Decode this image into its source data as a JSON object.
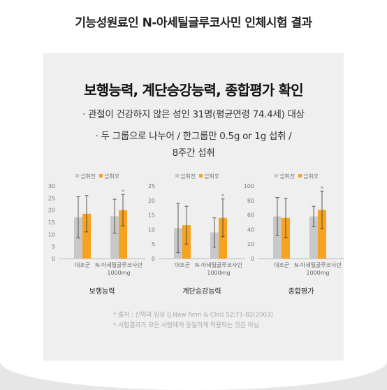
{
  "header": {
    "title": "기능성원료인 N-아세틸글루코사민 인체시험 결과"
  },
  "panel": {
    "heading": "보행능력, 계단승강능력, 종합평가 확인",
    "lines": [
      "· 관절이 건강하지 않은 성인 31명(평균연령 74.4세) 대상",
      "· 두 그룹으로 나누어 / 한그룹만 0.5g or 1g 섭취 /",
      "8주간 섭취"
    ]
  },
  "colors": {
    "before": "#c8c8c8",
    "after": "#f5a321"
  },
  "chart_data": [
    {
      "type": "bar",
      "title": "보행능력",
      "categories": [
        "대조군",
        "N-아세틸글루코사민"
      ],
      "category_sublabels": [
        "",
        "1000mg"
      ],
      "series": [
        {
          "name": "섭취전",
          "values": [
            17,
            17.5
          ],
          "error": [
            8.5,
            7
          ]
        },
        {
          "name": "섭취후",
          "values": [
            18.5,
            20
          ],
          "error": [
            7.5,
            6.5
          ]
        }
      ],
      "significance": [
        "",
        "*"
      ],
      "ylim": [
        0,
        30
      ],
      "yticks": [
        0,
        5,
        10,
        15,
        20,
        25,
        30
      ],
      "legend": "top"
    },
    {
      "type": "bar",
      "title": "계단승강능력",
      "categories": [
        "대조군",
        "N-아세틸글루코사민"
      ],
      "category_sublabels": [
        "",
        "1000mg"
      ],
      "series": [
        {
          "name": "섭취전",
          "values": [
            10.5,
            9
          ],
          "error": [
            8.5,
            5
          ]
        },
        {
          "name": "섭취후",
          "values": [
            11.5,
            14
          ],
          "error": [
            6.5,
            6.5
          ]
        }
      ],
      "significance": [
        "",
        "*"
      ],
      "ylim": [
        0,
        25
      ],
      "yticks": [
        0,
        5,
        10,
        15,
        20,
        25
      ],
      "legend": "top"
    },
    {
      "type": "bar",
      "title": "종합평가",
      "categories": [
        "대조군",
        "N-아세틸글루코사민"
      ],
      "category_sublabels": [
        "",
        "1000mg"
      ],
      "series": [
        {
          "name": "섭취전",
          "values": [
            58,
            58
          ],
          "error": [
            26,
            14
          ]
        },
        {
          "name": "섭취후",
          "values": [
            56,
            67
          ],
          "error": [
            27,
            26
          ]
        }
      ],
      "significance": [
        "",
        "*"
      ],
      "ylim": [
        0,
        100
      ],
      "yticks": [
        0,
        20,
        40,
        60,
        80,
        100
      ],
      "legend": "top"
    }
  ],
  "footer": {
    "source": "* 출처 : 신약과 임상 (J.New Rem & Clin) 52:71-82(2003)",
    "disclaimer": "* 시험결과가 모든 사람에게 동일하게 적용되는 것은 아님"
  }
}
